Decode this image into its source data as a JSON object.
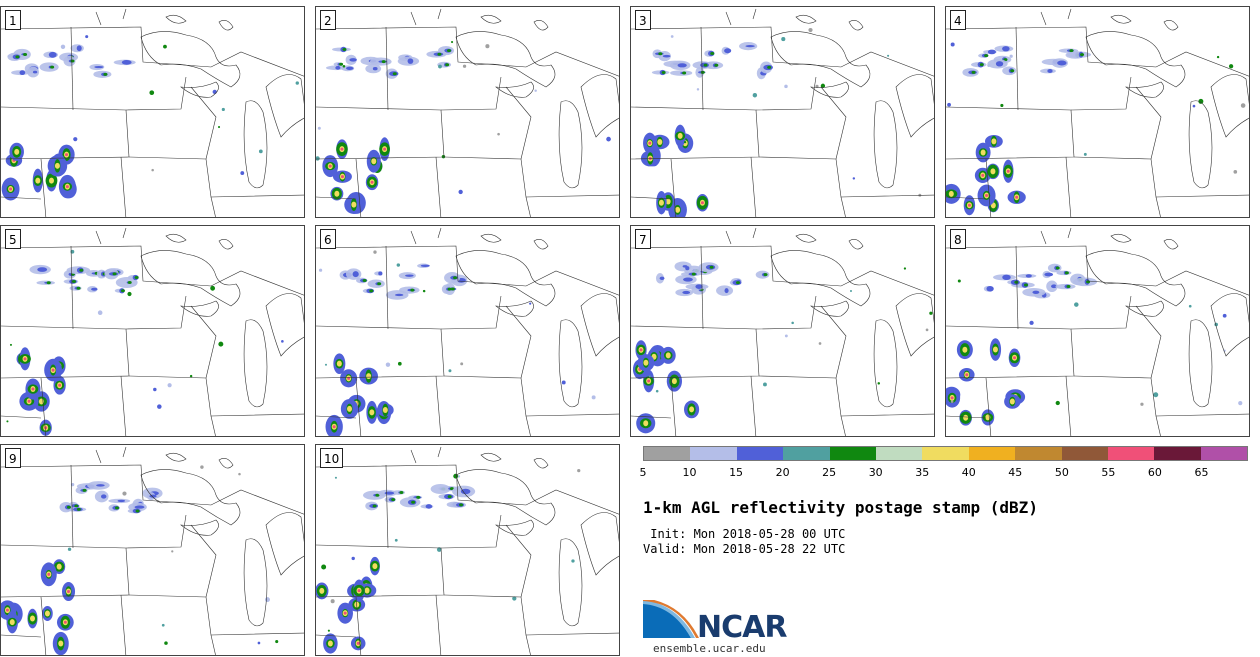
{
  "panels": [
    "1",
    "2",
    "3",
    "4",
    "5",
    "6",
    "7",
    "8",
    "9",
    "10"
  ],
  "colorbar": {
    "colors": [
      "#a0a0a0",
      "#b4bee8",
      "#5060d8",
      "#50a0a0",
      "#108810",
      "#c0dcc0",
      "#f0dc60",
      "#f0b020",
      "#c08830",
      "#905838",
      "#f05078",
      "#6a1838",
      "#b050a8"
    ],
    "ticks": [
      "5",
      "10",
      "15",
      "20",
      "25",
      "30",
      "35",
      "40",
      "45",
      "50",
      "55",
      "60",
      "65"
    ]
  },
  "title": "1-km AGL reflectivity postage stamp (dBZ)",
  "init_line": " Init: Mon 2018-05-28 00 UTC",
  "valid_line": "Valid: Mon 2018-05-28 22 UTC",
  "logo": {
    "name": "NCAR",
    "url": "ensemble.ucar.edu"
  }
}
